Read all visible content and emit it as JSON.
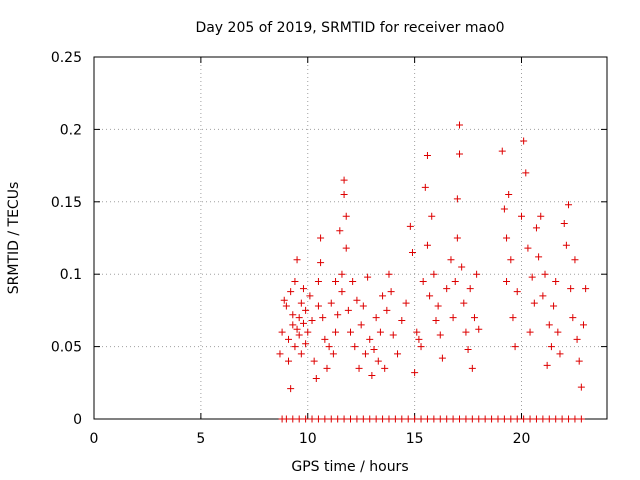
{
  "chart_data": {
    "type": "scatter",
    "title": "Day 205 of 2019, SRMTID for receiver mao0",
    "xlabel": "GPS time / hours",
    "ylabel": "SRMTID / TECUs",
    "xlim": [
      0,
      24
    ],
    "ylim": [
      0,
      0.25
    ],
    "xticks": [
      0,
      5,
      10,
      15,
      20
    ],
    "yticks": [
      0,
      0.05,
      0.1,
      0.15,
      0.2,
      0.25
    ],
    "ytick_labels": [
      "0",
      "0.05",
      "0.1",
      "0.15",
      "0.2",
      "0.25"
    ],
    "grid": true,
    "marker": "+",
    "color": "#dd0000",
    "series": [
      {
        "name": "SRMTID",
        "points": [
          [
            8.7,
            0.045
          ],
          [
            8.8,
            0.06
          ],
          [
            8.9,
            0.082
          ],
          [
            9.0,
            0.078
          ],
          [
            9.1,
            0.055
          ],
          [
            9.1,
            0.04
          ],
          [
            9.2,
            0.021
          ],
          [
            9.2,
            0.088
          ],
          [
            9.3,
            0.065
          ],
          [
            9.3,
            0.072
          ],
          [
            9.4,
            0.05
          ],
          [
            9.4,
            0.095
          ],
          [
            9.5,
            0.11
          ],
          [
            9.5,
            0.062
          ],
          [
            9.6,
            0.07
          ],
          [
            9.6,
            0.058
          ],
          [
            9.7,
            0.08
          ],
          [
            9.7,
            0.045
          ],
          [
            9.8,
            0.066
          ],
          [
            9.8,
            0.09
          ],
          [
            9.9,
            0.075
          ],
          [
            9.9,
            0.052
          ],
          [
            10.0,
            0.06
          ],
          [
            10.1,
            0.085
          ],
          [
            10.2,
            0.068
          ],
          [
            10.3,
            0.04
          ],
          [
            10.4,
            0.028
          ],
          [
            10.5,
            0.078
          ],
          [
            10.5,
            0.095
          ],
          [
            10.6,
            0.125
          ],
          [
            10.6,
            0.108
          ],
          [
            10.7,
            0.07
          ],
          [
            10.8,
            0.055
          ],
          [
            10.9,
            0.035
          ],
          [
            11.0,
            0.05
          ],
          [
            11.1,
            0.08
          ],
          [
            11.2,
            0.045
          ],
          [
            11.3,
            0.095
          ],
          [
            11.3,
            0.06
          ],
          [
            11.4,
            0.072
          ],
          [
            11.5,
            0.13
          ],
          [
            11.6,
            0.1
          ],
          [
            11.6,
            0.088
          ],
          [
            11.7,
            0.165
          ],
          [
            11.7,
            0.155
          ],
          [
            11.8,
            0.14
          ],
          [
            11.8,
            0.118
          ],
          [
            11.9,
            0.075
          ],
          [
            12.0,
            0.06
          ],
          [
            12.1,
            0.095
          ],
          [
            12.2,
            0.05
          ],
          [
            12.3,
            0.082
          ],
          [
            12.4,
            0.035
          ],
          [
            12.5,
            0.065
          ],
          [
            12.6,
            0.078
          ],
          [
            12.7,
            0.045
          ],
          [
            12.8,
            0.098
          ],
          [
            12.9,
            0.055
          ],
          [
            13.0,
            0.03
          ],
          [
            13.1,
            0.048
          ],
          [
            13.2,
            0.07
          ],
          [
            13.3,
            0.04
          ],
          [
            13.4,
            0.06
          ],
          [
            13.5,
            0.085
          ],
          [
            13.6,
            0.035
          ],
          [
            13.7,
            0.075
          ],
          [
            13.8,
            0.1
          ],
          [
            13.9,
            0.088
          ],
          [
            14.0,
            0.058
          ],
          [
            14.2,
            0.045
          ],
          [
            14.4,
            0.068
          ],
          [
            14.6,
            0.08
          ],
          [
            14.8,
            0.133
          ],
          [
            14.9,
            0.115
          ],
          [
            15.0,
            0.032
          ],
          [
            15.1,
            0.06
          ],
          [
            15.2,
            0.055
          ],
          [
            15.3,
            0.05
          ],
          [
            15.4,
            0.095
          ],
          [
            15.5,
            0.16
          ],
          [
            15.6,
            0.182
          ],
          [
            15.6,
            0.12
          ],
          [
            15.7,
            0.085
          ],
          [
            15.8,
            0.14
          ],
          [
            15.9,
            0.1
          ],
          [
            16.0,
            0.068
          ],
          [
            16.1,
            0.078
          ],
          [
            16.2,
            0.058
          ],
          [
            16.3,
            0.042
          ],
          [
            16.5,
            0.09
          ],
          [
            16.7,
            0.11
          ],
          [
            16.8,
            0.07
          ],
          [
            16.9,
            0.095
          ],
          [
            17.0,
            0.152
          ],
          [
            17.0,
            0.125
          ],
          [
            17.1,
            0.203
          ],
          [
            17.1,
            0.183
          ],
          [
            17.2,
            0.105
          ],
          [
            17.3,
            0.08
          ],
          [
            17.4,
            0.06
          ],
          [
            17.5,
            0.048
          ],
          [
            17.6,
            0.09
          ],
          [
            17.7,
            0.035
          ],
          [
            17.8,
            0.07
          ],
          [
            17.9,
            0.1
          ],
          [
            18.0,
            0.062
          ],
          [
            19.1,
            0.185
          ],
          [
            19.2,
            0.145
          ],
          [
            19.3,
            0.125
          ],
          [
            19.3,
            0.095
          ],
          [
            19.4,
            0.155
          ],
          [
            19.5,
            0.11
          ],
          [
            19.6,
            0.07
          ],
          [
            19.7,
            0.05
          ],
          [
            19.8,
            0.088
          ],
          [
            20.0,
            0.14
          ],
          [
            20.1,
            0.192
          ],
          [
            20.2,
            0.17
          ],
          [
            20.3,
            0.118
          ],
          [
            20.4,
            0.06
          ],
          [
            20.5,
            0.098
          ],
          [
            20.6,
            0.08
          ],
          [
            20.7,
            0.132
          ],
          [
            20.8,
            0.112
          ],
          [
            20.9,
            0.14
          ],
          [
            21.0,
            0.085
          ],
          [
            21.1,
            0.1
          ],
          [
            21.2,
            0.037
          ],
          [
            21.3,
            0.065
          ],
          [
            21.4,
            0.05
          ],
          [
            21.5,
            0.078
          ],
          [
            21.6,
            0.095
          ],
          [
            21.7,
            0.06
          ],
          [
            21.8,
            0.045
          ],
          [
            22.0,
            0.135
          ],
          [
            22.1,
            0.12
          ],
          [
            22.2,
            0.148
          ],
          [
            22.3,
            0.09
          ],
          [
            22.4,
            0.07
          ],
          [
            22.5,
            0.11
          ],
          [
            22.6,
            0.055
          ],
          [
            22.7,
            0.04
          ],
          [
            22.8,
            0.022
          ],
          [
            22.9,
            0.065
          ],
          [
            23.0,
            0.09
          ],
          [
            8.8,
            0.0
          ],
          [
            9.0,
            0.0
          ],
          [
            9.3,
            0.0
          ],
          [
            9.6,
            0.0
          ],
          [
            9.9,
            0.0
          ],
          [
            10.2,
            0.0
          ],
          [
            10.5,
            0.0
          ],
          [
            10.8,
            0.0
          ],
          [
            11.1,
            0.0
          ],
          [
            11.4,
            0.0
          ],
          [
            11.7,
            0.0
          ],
          [
            12.0,
            0.0
          ],
          [
            12.3,
            0.0
          ],
          [
            12.6,
            0.0
          ],
          [
            12.9,
            0.0
          ],
          [
            13.2,
            0.0
          ],
          [
            13.5,
            0.0
          ],
          [
            13.8,
            0.0
          ],
          [
            14.1,
            0.0
          ],
          [
            14.4,
            0.0
          ],
          [
            14.7,
            0.0
          ],
          [
            15.0,
            0.0
          ],
          [
            15.3,
            0.0
          ],
          [
            15.6,
            0.0
          ],
          [
            15.9,
            0.0
          ],
          [
            16.2,
            0.0
          ],
          [
            16.5,
            0.0
          ],
          [
            16.8,
            0.0
          ],
          [
            17.1,
            0.0
          ],
          [
            17.4,
            0.0
          ],
          [
            17.7,
            0.0
          ],
          [
            18.0,
            0.0
          ],
          [
            18.3,
            0.0
          ],
          [
            18.6,
            0.0
          ],
          [
            18.9,
            0.0
          ],
          [
            19.2,
            0.0
          ],
          [
            19.5,
            0.0
          ],
          [
            19.8,
            0.0
          ],
          [
            20.1,
            0.0
          ],
          [
            20.4,
            0.0
          ],
          [
            20.7,
            0.0
          ],
          [
            21.0,
            0.0
          ],
          [
            21.3,
            0.0
          ],
          [
            21.6,
            0.0
          ],
          [
            21.9,
            0.0
          ],
          [
            22.2,
            0.0
          ],
          [
            22.5,
            0.0
          ],
          [
            22.8,
            0.0
          ]
        ]
      }
    ]
  }
}
